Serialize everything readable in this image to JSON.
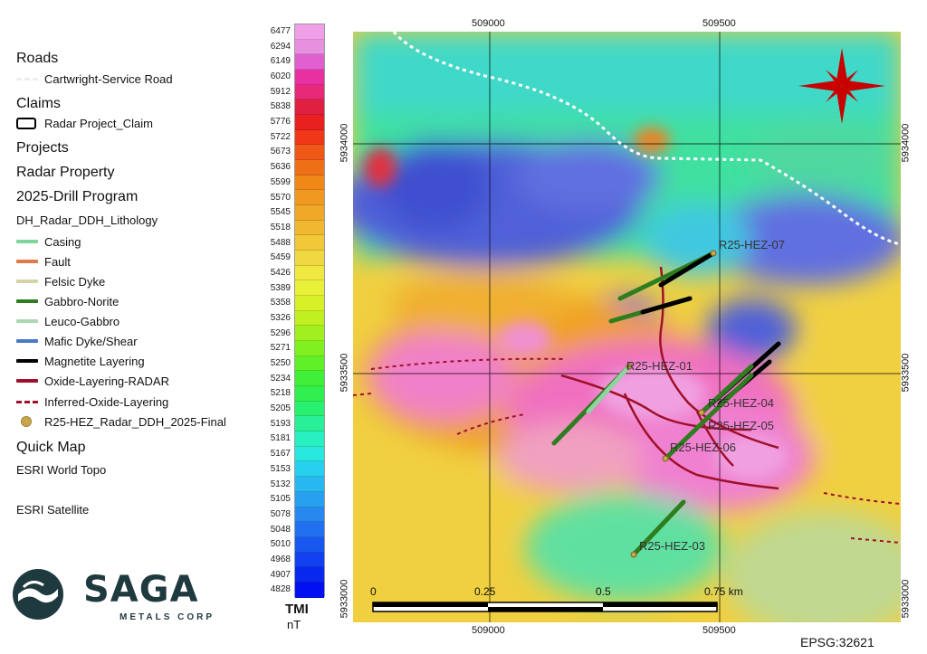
{
  "legend": {
    "roads": {
      "heading": "Roads",
      "item": "Cartwright-Service Road"
    },
    "claims": {
      "heading": "Claims",
      "item": "Radar Project_Claim"
    },
    "projects": "Projects",
    "radar_property": "Radar Property",
    "drill_program": "2025-Drill Program",
    "lithology_heading": "DH_Radar_DDH_Lithology",
    "lithology": [
      {
        "label": "Casing",
        "color": "#7fd49a"
      },
      {
        "label": "Fault",
        "color": "#e07a4a"
      },
      {
        "label": "Felsic Dyke",
        "color": "#d6d2a8"
      },
      {
        "label": "Gabbro-Norite",
        "color": "#2e7d1e"
      },
      {
        "label": "Leuco-Gabbro",
        "color": "#a9d8b2"
      },
      {
        "label": "Mafic Dyke/Shear",
        "color": "#4a78c8"
      },
      {
        "label": "Magnetite Layering",
        "color": "#000000"
      },
      {
        "label": "Oxide-Layering-RADAR",
        "color": "#a0102a"
      }
    ],
    "inferred": {
      "label": "Inferred-Oxide-Layering",
      "color": "#a0102a"
    },
    "holes": {
      "label": "R25-HEZ_Radar_DDH_2025-Final",
      "color": "#c8a64a"
    },
    "quick_map": "Quick Map",
    "basemaps": [
      "ESRI World Topo",
      "ESRI Satellite"
    ]
  },
  "logo": {
    "name": "SAGA",
    "sub": "METALS CORP"
  },
  "colorbar": {
    "title": "TMI",
    "unit": "nT",
    "labels": [
      "6477",
      "6294",
      "6149",
      "6020",
      "5912",
      "5838",
      "5776",
      "5722",
      "5673",
      "5636",
      "5599",
      "5570",
      "5545",
      "5518",
      "5488",
      "5459",
      "5426",
      "5389",
      "5358",
      "5326",
      "5296",
      "5271",
      "5250",
      "5234",
      "5218",
      "5205",
      "5193",
      "5181",
      "5167",
      "5153",
      "5132",
      "5105",
      "5078",
      "5048",
      "5010",
      "4968",
      "4907",
      "4828"
    ],
    "colors": [
      "#f0a0e8",
      "#e890e0",
      "#e060d0",
      "#e830a0",
      "#e82878",
      "#e02040",
      "#e82020",
      "#f03818",
      "#f05818",
      "#f07018",
      "#f08818",
      "#f09820",
      "#f0a828",
      "#f0b830",
      "#f0c838",
      "#f0d840",
      "#f0e840",
      "#e8f038",
      "#d8f028",
      "#c0f020",
      "#a0f020",
      "#80f020",
      "#60f028",
      "#40f038",
      "#30f050",
      "#28f070",
      "#28f098",
      "#28f0c0",
      "#28e8e0",
      "#28d0f0",
      "#28b8f0",
      "#28a0f0",
      "#2888f0",
      "#2070f0",
      "#1858f0",
      "#1040f0",
      "#0828f0",
      "#0010f0"
    ]
  },
  "map": {
    "grid_x_labels": [
      "509000",
      "509500"
    ],
    "grid_y_labels": [
      "5934000",
      "5933500",
      "5933000"
    ],
    "drillholes": [
      "R25-HEZ-07",
      "R25-HEZ-01",
      "R25-HEZ-04",
      "R25-HEZ-05",
      "R25-HEZ-06",
      "R25-HEZ-03"
    ],
    "scale": {
      "labels": [
        "0",
        "0.25",
        "0.5",
        "0.75 km"
      ]
    },
    "north_arrow": "compass-star-icon"
  },
  "epsg": "EPSG:32621"
}
